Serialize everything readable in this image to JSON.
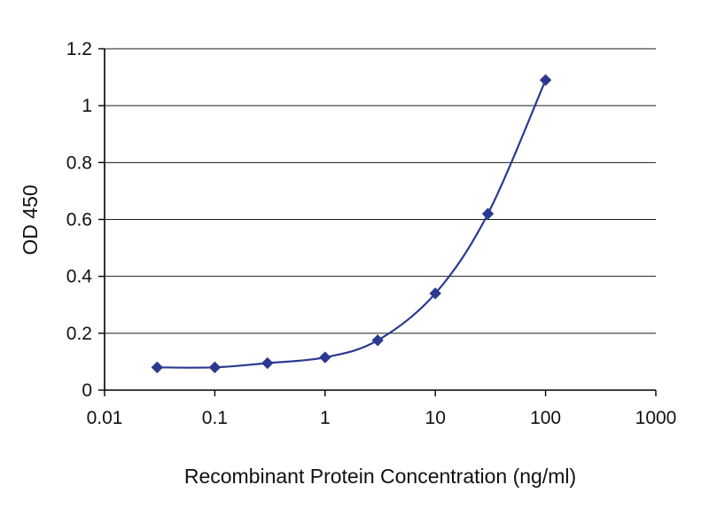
{
  "chart_data": {
    "type": "line",
    "title": "",
    "xlabel": "Recombinant Protein Concentration (ng/ml)",
    "ylabel": "OD 450",
    "x_scale": "log",
    "y_scale": "linear",
    "xlim": [
      0.01,
      1000
    ],
    "ylim": [
      0,
      1.2
    ],
    "x_ticks": [
      0.01,
      0.1,
      1,
      10,
      100,
      1000
    ],
    "x_tick_labels": [
      "0.01",
      "0.1",
      "1",
      "10",
      "100",
      "1000"
    ],
    "y_ticks": [
      0,
      0.2,
      0.4,
      0.6,
      0.8,
      1,
      1.2
    ],
    "y_tick_labels": [
      "0",
      "0.2",
      "0.4",
      "0.6",
      "0.8",
      "1",
      "1.2"
    ],
    "grid": "horizontal",
    "legend": "none",
    "colors": {
      "series": "#2b3990",
      "axis": "#000000",
      "gridline": "#1a1a1a",
      "background": "#ffffff"
    },
    "series": [
      {
        "name": "OD 450",
        "marker": "diamond",
        "smoothed": true,
        "x": [
          0.03,
          0.1,
          0.3,
          1,
          3,
          10,
          30,
          100
        ],
        "y": [
          0.08,
          0.08,
          0.095,
          0.115,
          0.175,
          0.34,
          0.62,
          1.09
        ]
      }
    ]
  }
}
